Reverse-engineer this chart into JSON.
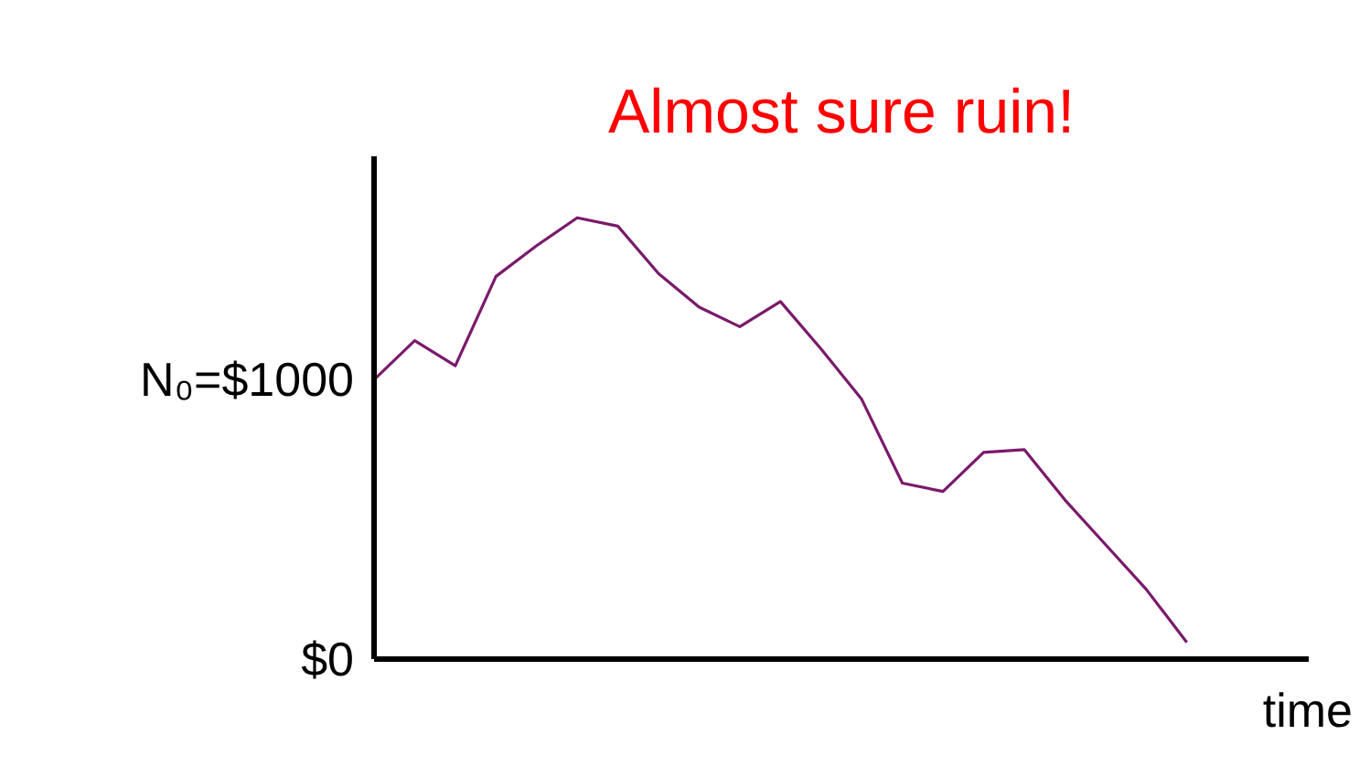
{
  "chart_data": {
    "type": "line",
    "title": "Almost sure ruin!",
    "xlabel": "time",
    "categories": [
      null,
      null,
      null,
      null,
      null,
      null,
      null,
      null,
      null,
      null,
      null,
      null,
      null,
      null,
      null,
      null,
      null,
      null,
      null,
      null,
      null
    ],
    "series": [
      {
        "color": "#7b1a6a",
        "values": [
          1000,
          1140,
          1050,
          1370,
          1480,
          1580,
          1550,
          1380,
          1260,
          1190,
          1280,
          1110,
          930,
          630,
          600,
          740,
          750,
          570,
          410,
          250,
          60
        ]
      }
    ],
    "ylim": [
      0,
      1800
    ],
    "yticks": [
      {
        "value": 0,
        "label": "$0"
      },
      {
        "value": 1000,
        "label": "N₀=$1000"
      }
    ],
    "grid": false,
    "marker": "none",
    "line_style": "solid",
    "tick_labels": "y"
  }
}
